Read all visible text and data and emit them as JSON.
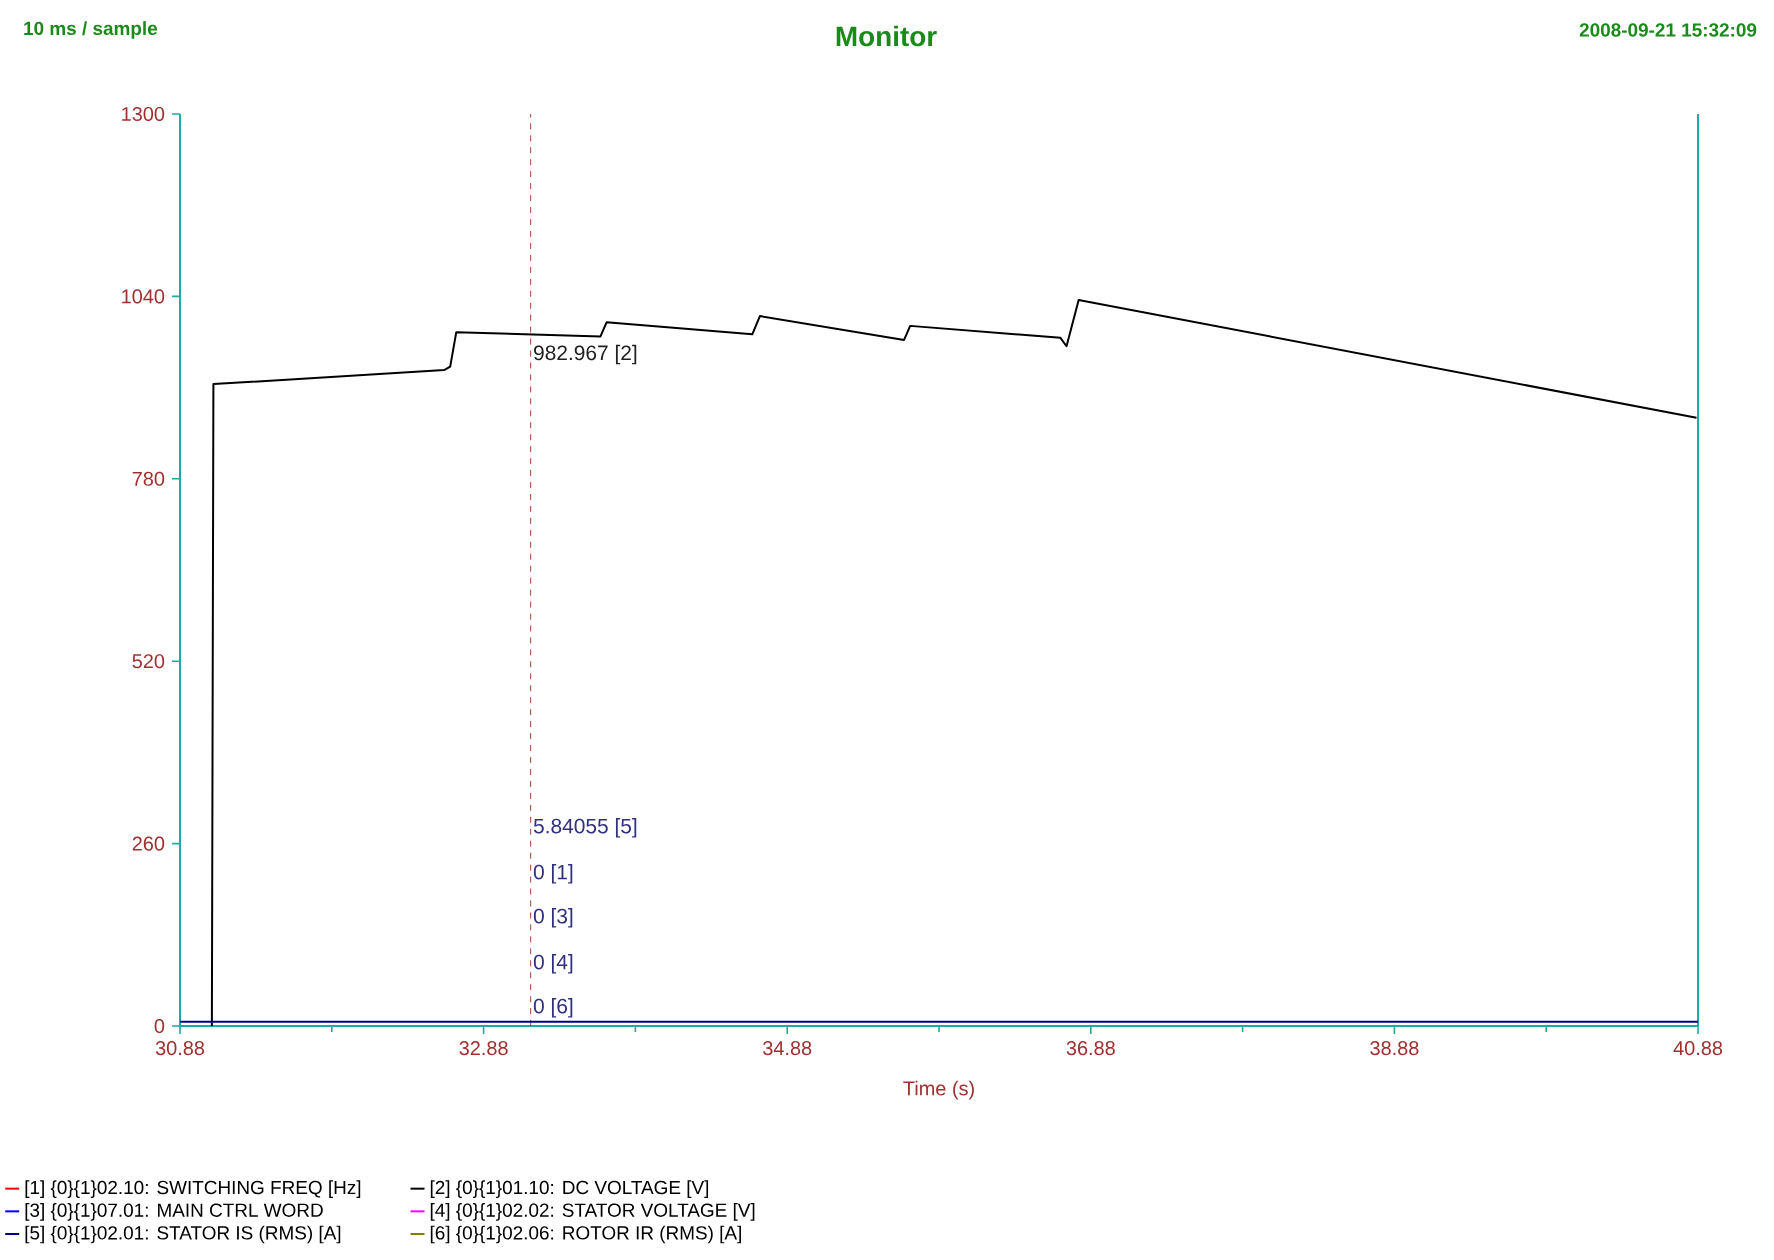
{
  "chart_data": {
    "type": "line",
    "title": "Monitor",
    "subtitle": "10 ms / sample",
    "xlabel": "Time (s)",
    "xlim": [
      30.88,
      40.88
    ],
    "xticks": [
      30.88,
      32.88,
      34.88,
      36.88,
      38.88,
      40.88
    ],
    "ylim": [
      0,
      1300
    ],
    "yticks": [
      0,
      260,
      520,
      780,
      1040,
      1300
    ],
    "grid": false,
    "legend": "bottom",
    "ref_lines": [
      {
        "axis": "x",
        "value": 33.19,
        "color": "#a04040",
        "line_style": "dashed"
      }
    ],
    "annotations": [
      "2008-09-21 15:32:09",
      {
        "text": "982.967 [2]",
        "x": 33.19,
        "y": 982.967
      },
      "5.84055 [5]",
      "0 [1]",
      "0 [3]",
      "0 [4]",
      "0 [6]"
    ],
    "series": [
      {
        "name": "[1] {0}{1}02.10: SWITCHING FREQ [Hz]",
        "color": "#ff0000",
        "values": [
          null,
          null
        ]
      },
      {
        "name": "[2] {0}{1}01.10: DC VOLTAGE [V]",
        "color": "#000000",
        "x": [
          31.09,
          31.1,
          32.62,
          32.66,
          32.7,
          33.65,
          33.69,
          34.65,
          34.7,
          35.65,
          35.69,
          36.68,
          36.72,
          36.8,
          40.87
        ],
        "values": [
          0,
          915,
          935,
          940,
          989,
          983,
          1003,
          986,
          1012,
          978,
          998,
          981,
          969,
          1035,
          867
        ]
      },
      {
        "name": "[3] {0}{1}07.01: MAIN CTRL WORD",
        "color": "#0000ff",
        "values": [
          null,
          null
        ]
      },
      {
        "name": "[4] {0}{1}02.02: STATOR VOLTAGE [V]",
        "color": "#ff00ff",
        "values": [
          null,
          null
        ]
      },
      {
        "name": "[5] {0}{1}02.01: STATOR IS (RMS) [A]",
        "color": "#000080",
        "x": [
          30.88,
          40.88
        ],
        "values": [
          6,
          6
        ]
      },
      {
        "name": "[6] {0}{1}02.06: ROTOR IR  (RMS) [A]",
        "color": "#808000",
        "values": [
          null,
          null
        ]
      }
    ]
  }
}
